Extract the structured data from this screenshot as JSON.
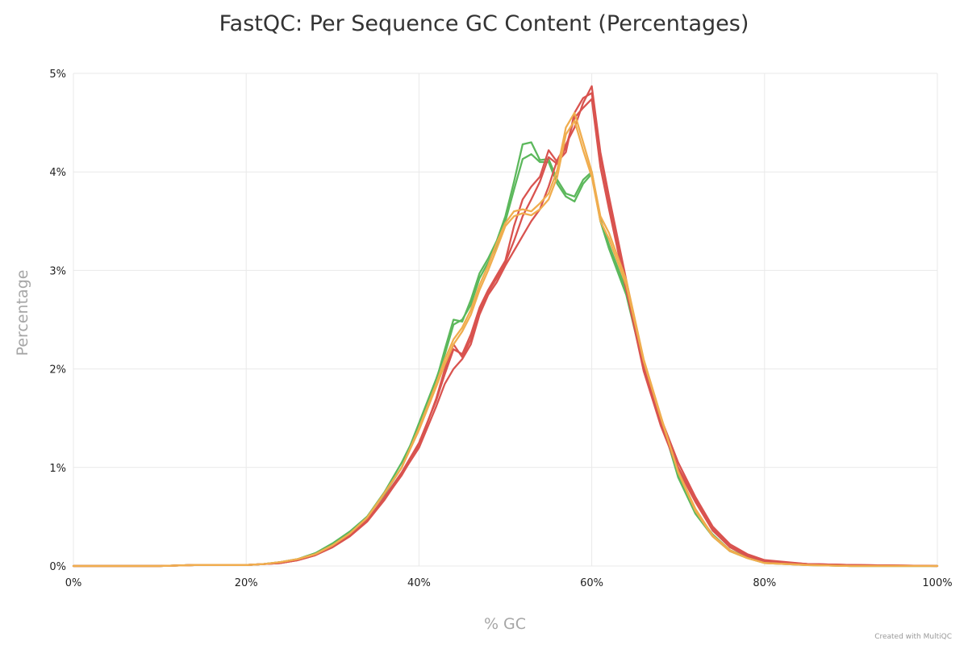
{
  "chart_data": {
    "type": "line",
    "title": "FastQC: Per Sequence GC Content (Percentages)",
    "xlabel": "% GC",
    "ylabel": "Percentage",
    "credit": "Created with MultiQC",
    "xlim": [
      0,
      100
    ],
    "ylim": [
      0,
      5
    ],
    "x_ticks": [
      0,
      20,
      40,
      60,
      80,
      100
    ],
    "x_tick_labels": [
      "0%",
      "20%",
      "40%",
      "60%",
      "80%",
      "100%"
    ],
    "y_ticks": [
      0,
      1,
      2,
      3,
      4,
      5
    ],
    "y_tick_labels": [
      "0%",
      "1%",
      "2%",
      "3%",
      "4%",
      "5%"
    ],
    "grid": true,
    "legend": "none",
    "x": [
      0,
      10,
      14,
      20,
      22,
      24,
      26,
      28,
      30,
      32,
      34,
      36,
      38,
      40,
      42,
      43,
      44,
      45,
      46,
      47,
      48,
      49,
      50,
      51,
      52,
      53,
      54,
      55,
      56,
      57,
      58,
      59,
      60,
      61,
      62,
      64,
      66,
      68,
      70,
      72,
      74,
      76,
      78,
      80,
      85,
      90,
      100
    ],
    "series": [
      {
        "color": "#5cb85c",
        "values": [
          0,
          0,
          0.01,
          0.01,
          0.02,
          0.04,
          0.07,
          0.13,
          0.22,
          0.34,
          0.5,
          0.75,
          1.05,
          1.4,
          1.88,
          2.2,
          2.5,
          2.48,
          2.7,
          2.97,
          3.12,
          3.3,
          3.55,
          3.9,
          4.28,
          4.3,
          4.12,
          4.13,
          3.92,
          3.78,
          3.75,
          3.92,
          4.0,
          3.52,
          3.26,
          2.8,
          2.05,
          1.5,
          0.9,
          0.53,
          0.3,
          0.15,
          0.08,
          0.03,
          0.01,
          0,
          0
        ]
      },
      {
        "color": "#5cb85c",
        "values": [
          0,
          0,
          0.01,
          0.01,
          0.02,
          0.04,
          0.07,
          0.13,
          0.23,
          0.35,
          0.5,
          0.73,
          1.0,
          1.45,
          1.9,
          2.15,
          2.45,
          2.5,
          2.65,
          2.92,
          3.08,
          3.25,
          3.5,
          3.82,
          4.13,
          4.18,
          4.1,
          4.1,
          3.88,
          3.75,
          3.7,
          3.88,
          3.98,
          3.5,
          3.22,
          2.75,
          2.02,
          1.48,
          0.92,
          0.55,
          0.32,
          0.16,
          0.09,
          0.04,
          0.01,
          0,
          0
        ]
      },
      {
        "color": "#d9534f",
        "values": [
          0,
          0,
          0.01,
          0.01,
          0.02,
          0.03,
          0.06,
          0.11,
          0.19,
          0.3,
          0.45,
          0.67,
          0.93,
          1.2,
          1.62,
          1.85,
          2.0,
          2.1,
          2.25,
          2.55,
          2.75,
          2.88,
          3.05,
          3.2,
          3.35,
          3.5,
          3.62,
          3.85,
          4.12,
          4.28,
          4.45,
          4.7,
          4.87,
          4.2,
          3.75,
          2.9,
          2.05,
          1.5,
          1.05,
          0.7,
          0.4,
          0.22,
          0.12,
          0.06,
          0.02,
          0.01,
          0
        ]
      },
      {
        "color": "#d9534f",
        "values": [
          0,
          0,
          0.01,
          0.01,
          0.02,
          0.03,
          0.06,
          0.11,
          0.2,
          0.31,
          0.46,
          0.7,
          0.95,
          1.25,
          1.68,
          1.95,
          2.2,
          2.15,
          2.35,
          2.62,
          2.8,
          2.95,
          3.1,
          3.45,
          3.72,
          3.85,
          3.95,
          4.22,
          4.1,
          4.2,
          4.6,
          4.75,
          4.8,
          4.15,
          3.7,
          2.85,
          2.0,
          1.45,
          1.0,
          0.68,
          0.38,
          0.2,
          0.11,
          0.05,
          0.02,
          0.01,
          0
        ]
      },
      {
        "color": "#d9534f",
        "values": [
          0,
          0,
          0.01,
          0.01,
          0.02,
          0.03,
          0.06,
          0.11,
          0.2,
          0.32,
          0.47,
          0.68,
          0.92,
          1.22,
          1.7,
          2.0,
          2.25,
          2.12,
          2.3,
          2.58,
          2.78,
          2.92,
          3.08,
          3.3,
          3.55,
          3.72,
          3.9,
          4.15,
          4.08,
          4.25,
          4.55,
          4.65,
          4.74,
          4.05,
          3.62,
          2.8,
          1.98,
          1.42,
          0.98,
          0.65,
          0.36,
          0.19,
          0.1,
          0.05,
          0.02,
          0.01,
          0
        ]
      },
      {
        "color": "#f0ad4e",
        "values": [
          0,
          0,
          0.01,
          0.01,
          0.02,
          0.04,
          0.07,
          0.12,
          0.21,
          0.33,
          0.49,
          0.74,
          1.0,
          1.4,
          1.85,
          2.1,
          2.3,
          2.42,
          2.6,
          2.85,
          3.05,
          3.28,
          3.48,
          3.6,
          3.62,
          3.6,
          3.68,
          3.78,
          4.02,
          4.45,
          4.6,
          4.3,
          4.0,
          3.55,
          3.38,
          2.9,
          2.1,
          1.52,
          0.95,
          0.56,
          0.3,
          0.15,
          0.08,
          0.03,
          0.01,
          0,
          0
        ]
      },
      {
        "color": "#f0ad4e",
        "values": [
          0,
          0,
          0.01,
          0.01,
          0.02,
          0.04,
          0.07,
          0.12,
          0.21,
          0.33,
          0.49,
          0.74,
          1.0,
          1.38,
          1.82,
          2.05,
          2.25,
          2.38,
          2.55,
          2.8,
          3.0,
          3.22,
          3.45,
          3.55,
          3.58,
          3.56,
          3.62,
          3.72,
          3.95,
          4.38,
          4.52,
          4.22,
          3.95,
          3.5,
          3.32,
          2.85,
          2.08,
          1.5,
          0.96,
          0.58,
          0.31,
          0.16,
          0.08,
          0.03,
          0.01,
          0,
          0
        ]
      }
    ]
  }
}
